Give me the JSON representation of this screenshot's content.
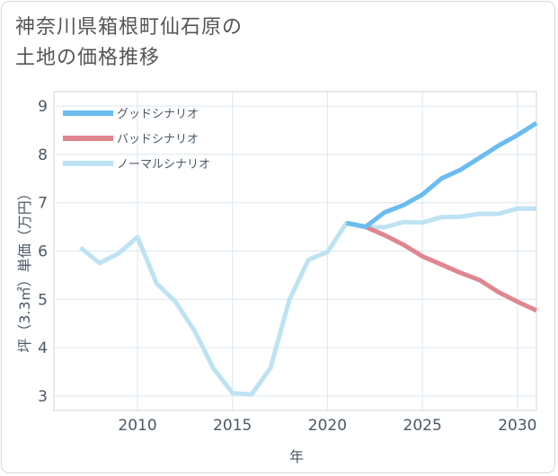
{
  "title_line1": "神奈川県箱根町仙石原の",
  "title_line2": "土地の価格推移",
  "chart_data": {
    "type": "line",
    "xlabel": "年",
    "ylabel": "坪（3.3㎡）単価（万円）",
    "xlim": [
      2005.6,
      2031
    ],
    "ylim": [
      2.7,
      9.3
    ],
    "xticks": [
      2010,
      2015,
      2020,
      2025,
      2030
    ],
    "yticks": [
      3,
      4,
      5,
      6,
      7,
      8,
      9
    ],
    "grid": true,
    "legend_position": "top-left",
    "series": [
      {
        "name": "グッドシナリオ",
        "color": "#6bbcf0",
        "x": [
          2021,
          2022,
          2023,
          2024,
          2025,
          2026,
          2027,
          2028,
          2029,
          2030,
          2031
        ],
        "y": [
          6.58,
          6.5,
          6.8,
          6.95,
          7.17,
          7.5,
          7.68,
          7.93,
          8.18,
          8.4,
          8.65
        ]
      },
      {
        "name": "バッドシナリオ",
        "color": "#e0868e",
        "x": [
          2021,
          2022,
          2023,
          2024,
          2025,
          2026,
          2027,
          2028,
          2029,
          2030,
          2031
        ],
        "y": [
          6.58,
          6.5,
          6.33,
          6.13,
          5.89,
          5.72,
          5.55,
          5.4,
          5.15,
          4.95,
          4.77
        ]
      },
      {
        "name": "ノーマルシナリオ",
        "color": "#bde3f2",
        "x": [
          2007,
          2008,
          2009,
          2010,
          2011,
          2012,
          2013,
          2014,
          2015,
          2016,
          2017,
          2018,
          2019,
          2020,
          2021,
          2022,
          2023,
          2024,
          2025,
          2026,
          2027,
          2028,
          2029,
          2030,
          2031
        ],
        "y": [
          6.07,
          5.75,
          5.95,
          6.29,
          5.33,
          4.95,
          4.35,
          3.57,
          3.06,
          3.03,
          3.58,
          5.0,
          5.82,
          5.98,
          6.58,
          6.5,
          6.49,
          6.6,
          6.59,
          6.7,
          6.71,
          6.77,
          6.77,
          6.88,
          6.88
        ]
      }
    ]
  }
}
